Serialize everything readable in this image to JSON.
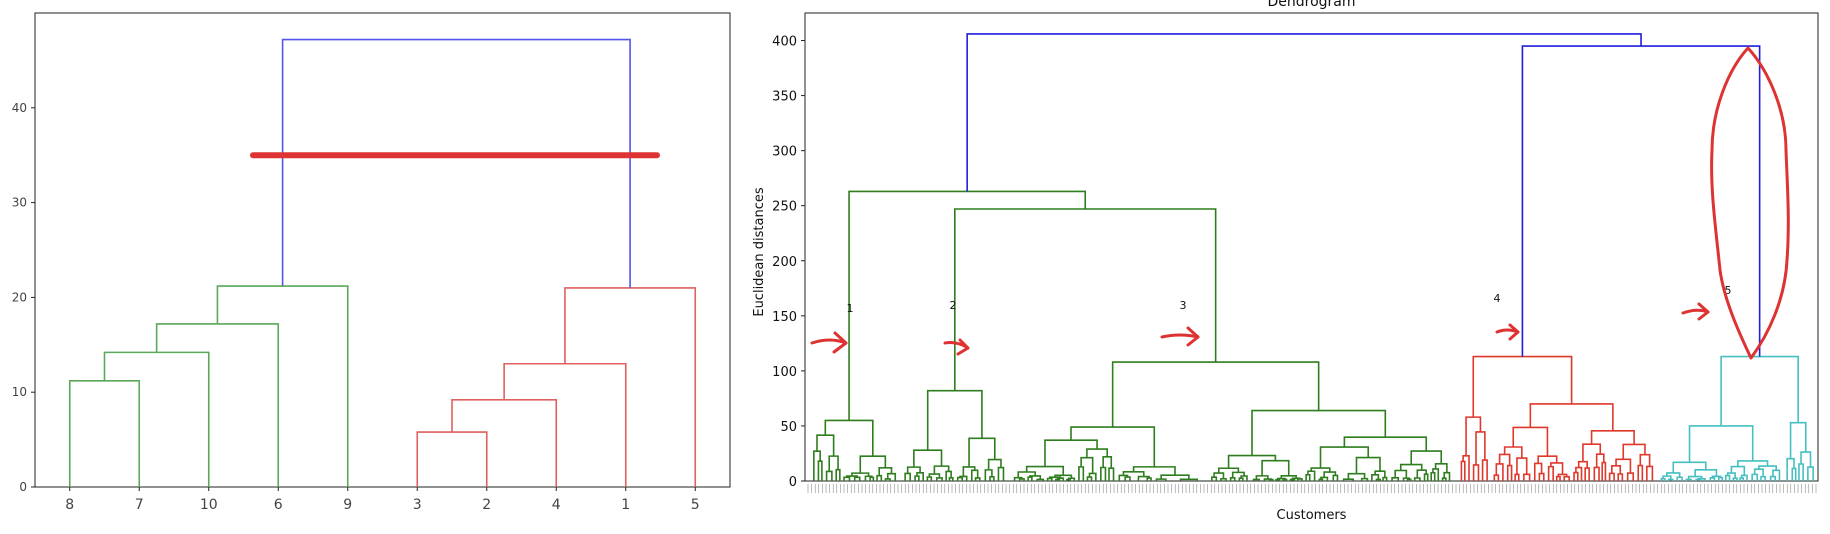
{
  "chart_data": [
    {
      "type": "dendrogram",
      "title": "",
      "xlabel": "",
      "ylabel": "",
      "ylim": [
        0,
        50
      ],
      "yticks": [
        0,
        10,
        20,
        30,
        40
      ],
      "leaves": [
        "8",
        "7",
        "10",
        "6",
        "9",
        "3",
        "2",
        "4",
        "1",
        "5"
      ],
      "merges": [
        {
          "a": "8",
          "b": "7",
          "height": 11.2,
          "color": "#5aa85a"
        },
        {
          "a": "(8,7)",
          "b": "10",
          "height": 14.2,
          "color": "#5aa85a"
        },
        {
          "a": "(8,7,10)",
          "b": "6",
          "height": 17.2,
          "color": "#5aa85a"
        },
        {
          "a": "(8,7,10,6)",
          "b": "9",
          "height": 21.2,
          "color": "#5aa85a"
        },
        {
          "a": "3",
          "b": "2",
          "height": 5.8,
          "color": "#e06060"
        },
        {
          "a": "(3,2)",
          "b": "4",
          "height": 9.2,
          "color": "#e06060"
        },
        {
          "a": "(3,2,4)",
          "b": "1",
          "height": 13.0,
          "color": "#e06060"
        },
        {
          "a": "(3,2,4,1)",
          "b": "5",
          "height": 21.0,
          "color": "#e06060"
        },
        {
          "a": "green cluster",
          "b": "red cluster",
          "height": 47.2,
          "color": "#5555ee"
        }
      ],
      "annotations": [
        {
          "kind": "horizontal-cut-line",
          "y": 35,
          "color": "#dd3333"
        }
      ]
    },
    {
      "type": "dendrogram",
      "title": "Dendrogram",
      "xlabel": "Customers",
      "ylabel": "Euclidean distances",
      "ylim": [
        0,
        425
      ],
      "yticks": [
        0,
        50,
        100,
        150,
        200,
        250,
        300,
        350,
        400
      ],
      "clusters": [
        {
          "label": "1",
          "color": "#2e7d1e",
          "merge_height": 55
        },
        {
          "label": "2",
          "color": "#2e7d1e",
          "merge_height": 82
        },
        {
          "label": "3",
          "color": "#2e7d1e",
          "merge_height": 108
        },
        {
          "label": "4",
          "color": "#e0382b",
          "merge_height": 113
        },
        {
          "label": "5",
          "color": "#46bfc0",
          "merge_height": 113
        }
      ],
      "upper_merges": [
        {
          "join": "1 + 2",
          "height": 263
        },
        {
          "join": "(2) + (3)",
          "height": 247
        },
        {
          "join": "4 + 5",
          "height": 395
        },
        {
          "join": "(1,2,3) + (4,5)",
          "height": 406
        }
      ],
      "annotations": {
        "cluster_labels": [
          "1",
          "2",
          "3",
          "4",
          "5"
        ],
        "arrow_color": "#dd3333"
      }
    }
  ]
}
